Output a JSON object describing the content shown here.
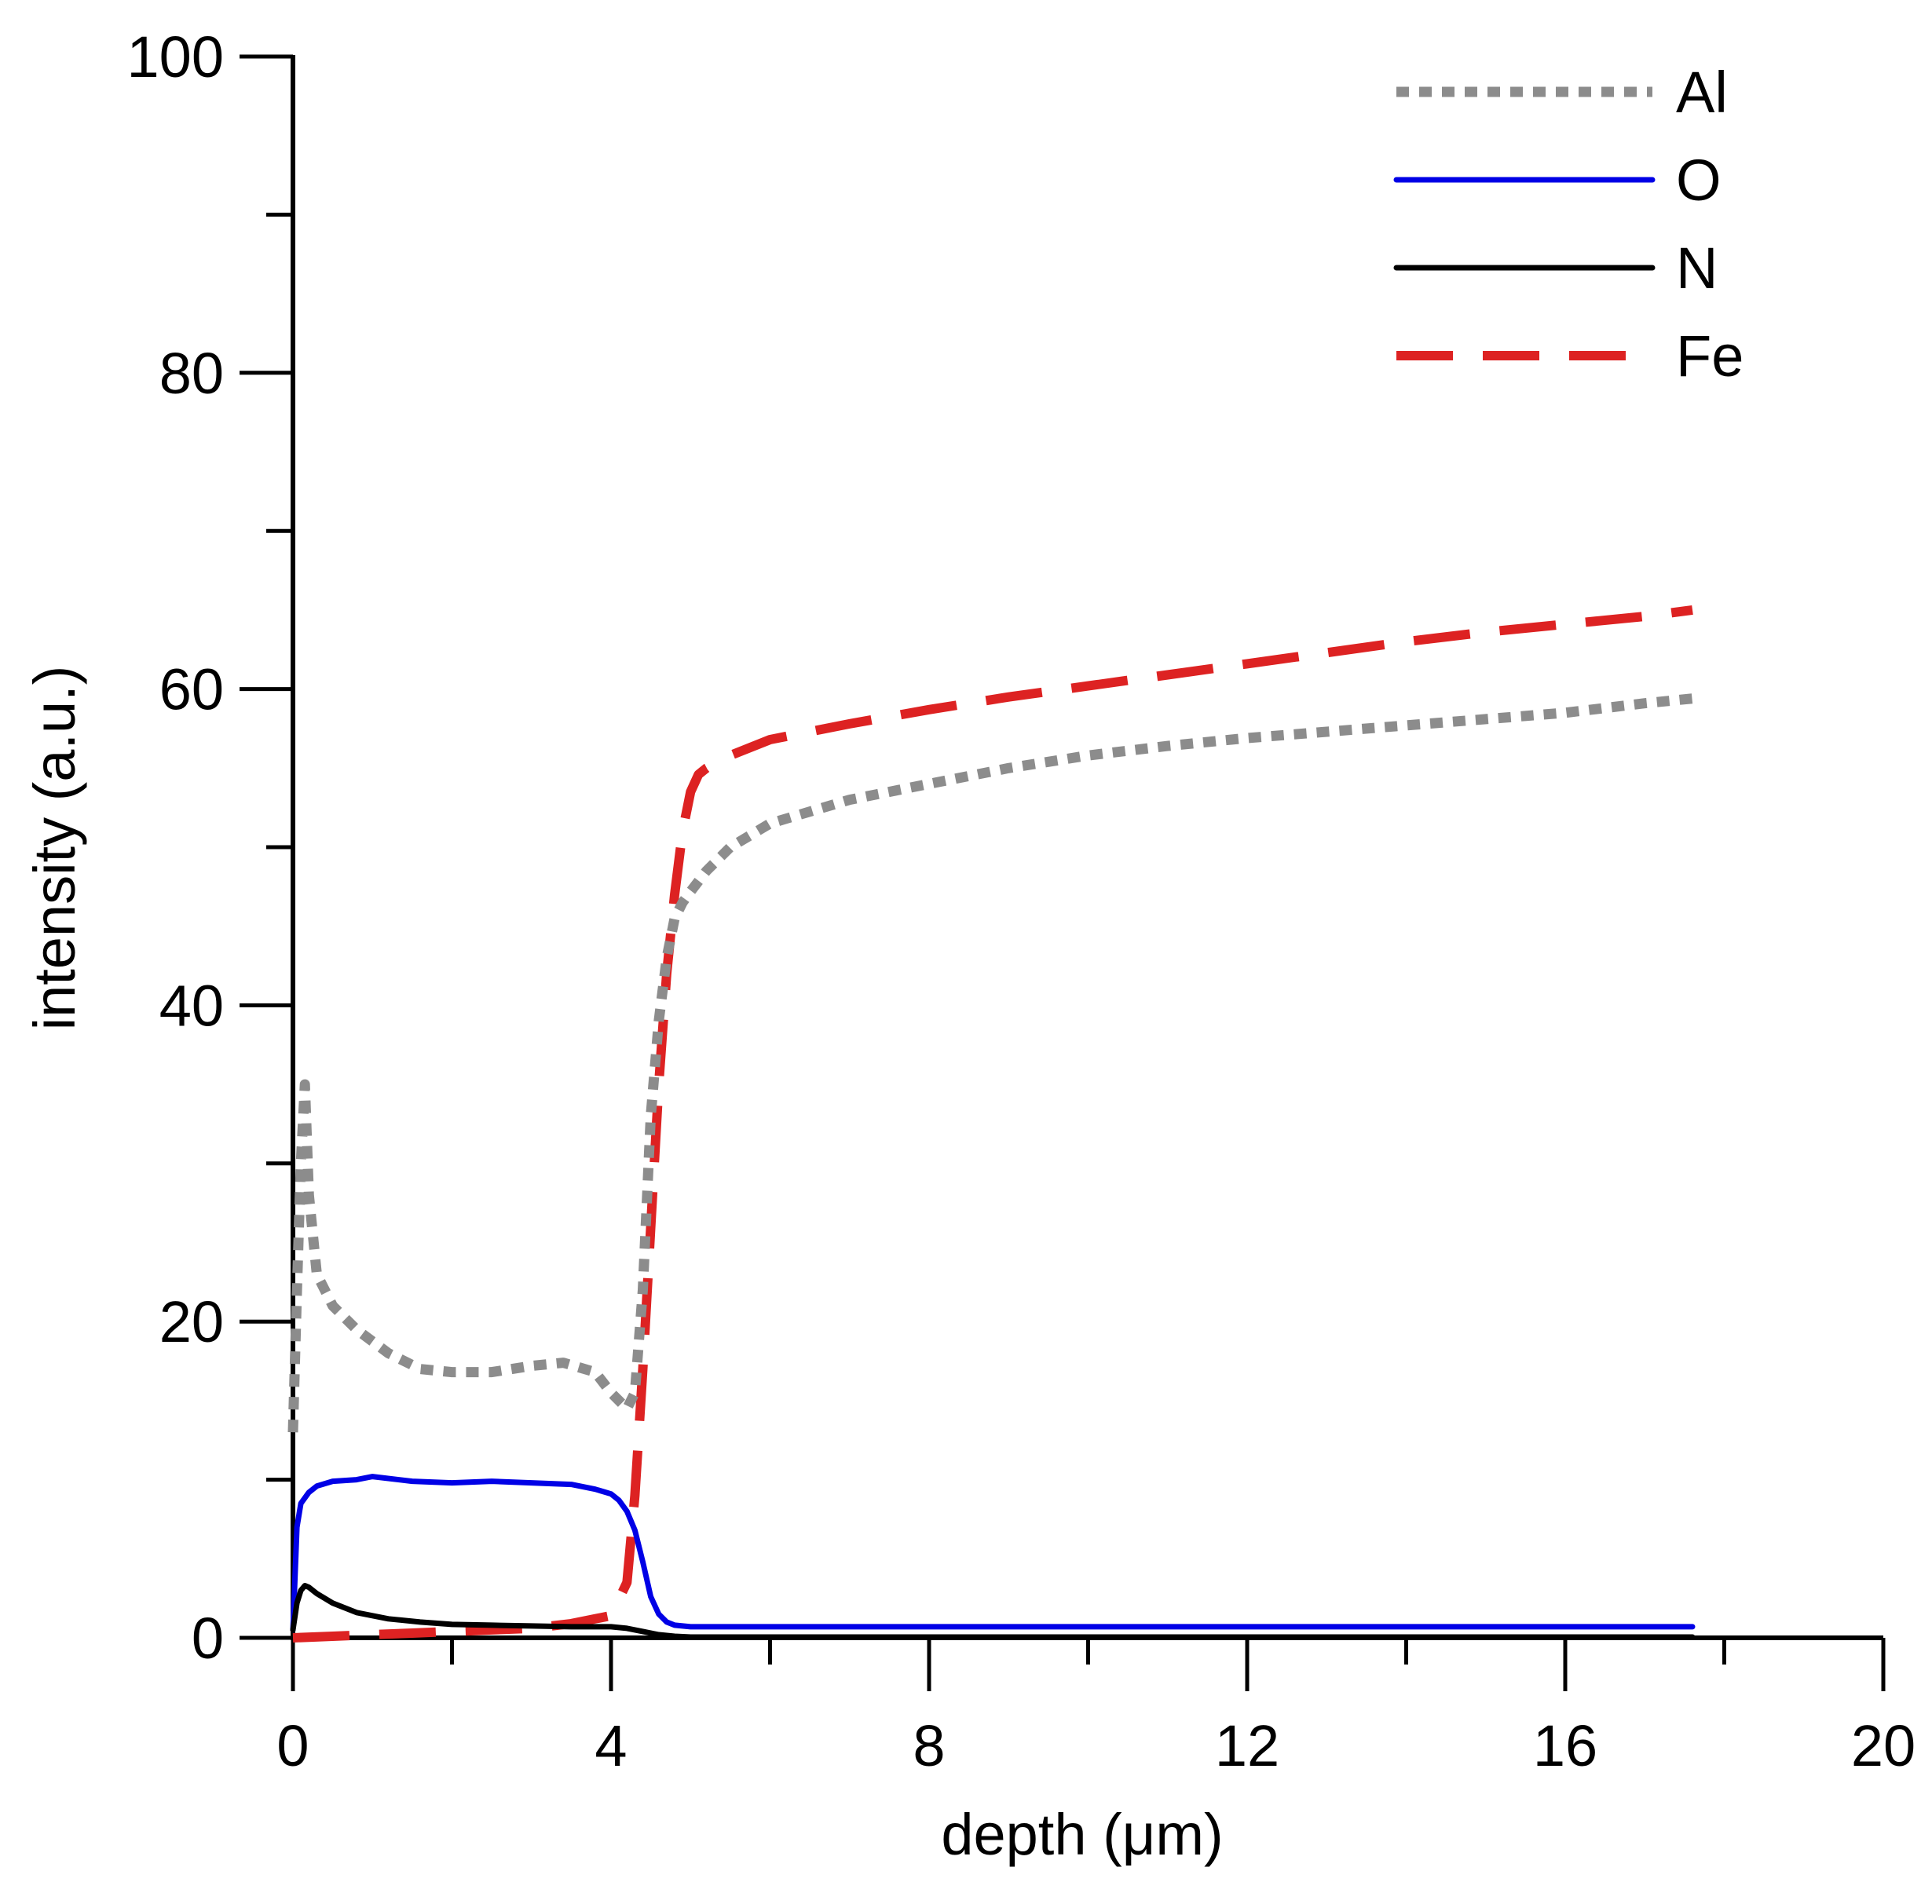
{
  "chart_data": {
    "type": "line",
    "title": "",
    "xlabel": "depth (μm)",
    "ylabel": "intensity (a.u.)",
    "xlim": [
      0,
      20
    ],
    "ylim": [
      0,
      100
    ],
    "x_ticks": [
      0,
      4,
      8,
      12,
      16,
      20
    ],
    "x_tick_labels": [
      "0",
      "4",
      "8",
      "12",
      "16",
      "20"
    ],
    "x_minor_ticks": [
      2,
      6,
      10,
      14,
      18
    ],
    "y_ticks": [
      0,
      20,
      40,
      60,
      80,
      100
    ],
    "y_tick_labels": [
      "0",
      "20",
      "40",
      "60",
      "80",
      "100"
    ],
    "y_minor_ticks": [
      10,
      30,
      50,
      70,
      90
    ],
    "grid": false,
    "legend_position": "top-right",
    "series": [
      {
        "name": "Al",
        "color": "#8c8c8c",
        "style": "dotted",
        "x": [
          0,
          0.05,
          0.1,
          0.15,
          0.2,
          0.3,
          0.5,
          0.8,
          1.2,
          1.6,
          2.0,
          2.5,
          3.0,
          3.4,
          3.8,
          4.0,
          4.2,
          4.3,
          4.4,
          4.5,
          4.6,
          4.7,
          4.8,
          4.9,
          5.0,
          5.2,
          5.5,
          6.0,
          7.0,
          8.0,
          9.0,
          10.0,
          11.0,
          12.0,
          13.0,
          14.0,
          15.0,
          16.0,
          17.0,
          17.6
        ],
        "y": [
          13,
          22,
          30,
          35,
          28,
          23,
          21,
          19.5,
          18,
          17,
          16.8,
          16.8,
          17.2,
          17.4,
          16.8,
          15.5,
          14.5,
          15.5,
          22,
          33,
          39,
          43,
          45.5,
          46.5,
          47.2,
          48.5,
          50,
          51.5,
          53,
          54,
          55,
          55.8,
          56.4,
          56.9,
          57.3,
          57.7,
          58.1,
          58.5,
          59.1,
          59.4
        ]
      },
      {
        "name": "O",
        "color": "#0000e6",
        "style": "solid",
        "x": [
          0,
          0.05,
          0.1,
          0.2,
          0.3,
          0.5,
          0.8,
          1.0,
          1.5,
          2.0,
          2.5,
          3.0,
          3.5,
          3.8,
          4.0,
          4.1,
          4.2,
          4.3,
          4.4,
          4.5,
          4.6,
          4.7,
          4.8,
          5.0,
          5.5,
          6.0,
          8.0,
          10.0,
          12.0,
          14.0,
          16.0,
          17.6
        ],
        "y": [
          0.5,
          7,
          8.5,
          9.2,
          9.6,
          9.9,
          10,
          10.2,
          9.9,
          9.8,
          9.9,
          9.8,
          9.7,
          9.4,
          9.1,
          8.7,
          8,
          6.8,
          4.8,
          2.6,
          1.5,
          1,
          0.8,
          0.7,
          0.7,
          0.7,
          0.7,
          0.7,
          0.7,
          0.7,
          0.7,
          0.7
        ]
      },
      {
        "name": "N",
        "color": "#000000",
        "style": "solid",
        "x": [
          0,
          0.05,
          0.1,
          0.15,
          0.2,
          0.3,
          0.5,
          0.8,
          1.2,
          1.6,
          2.0,
          2.5,
          3.0,
          3.5,
          4.0,
          4.2,
          4.4,
          4.6,
          4.8,
          5.0,
          6.0,
          8.0,
          10.0,
          12.0,
          14.0,
          16.0,
          17.6
        ],
        "y": [
          0.5,
          2.2,
          3,
          3.3,
          3.2,
          2.8,
          2.2,
          1.6,
          1.2,
          1.0,
          0.85,
          0.8,
          0.75,
          0.7,
          0.7,
          0.6,
          0.4,
          0.2,
          0.1,
          0.05,
          0.05,
          0.05,
          0.05,
          0.05,
          0.05,
          0.05,
          0.05
        ]
      },
      {
        "name": "Fe",
        "color": "#dd2222",
        "style": "dashed",
        "x": [
          0,
          0.5,
          1.0,
          1.5,
          2.0,
          2.5,
          3.0,
          3.5,
          3.8,
          4.0,
          4.2,
          4.3,
          4.4,
          4.5,
          4.6,
          4.7,
          4.8,
          4.9,
          5.0,
          5.1,
          5.2,
          5.5,
          6.0,
          7.0,
          8.0,
          9.0,
          10.0,
          11.0,
          12.0,
          13.0,
          14.0,
          15.0,
          16.0,
          17.0,
          17.6
        ],
        "y": [
          0,
          0.1,
          0.2,
          0.3,
          0.4,
          0.5,
          0.6,
          0.9,
          1.2,
          1.4,
          3.5,
          9,
          17,
          26,
          35,
          42,
          47,
          51,
          53.5,
          54.6,
          55,
          55.8,
          56.8,
          57.8,
          58.7,
          59.5,
          60.2,
          60.9,
          61.6,
          62.3,
          63.0,
          63.6,
          64.1,
          64.6,
          65.0
        ]
      }
    ]
  }
}
